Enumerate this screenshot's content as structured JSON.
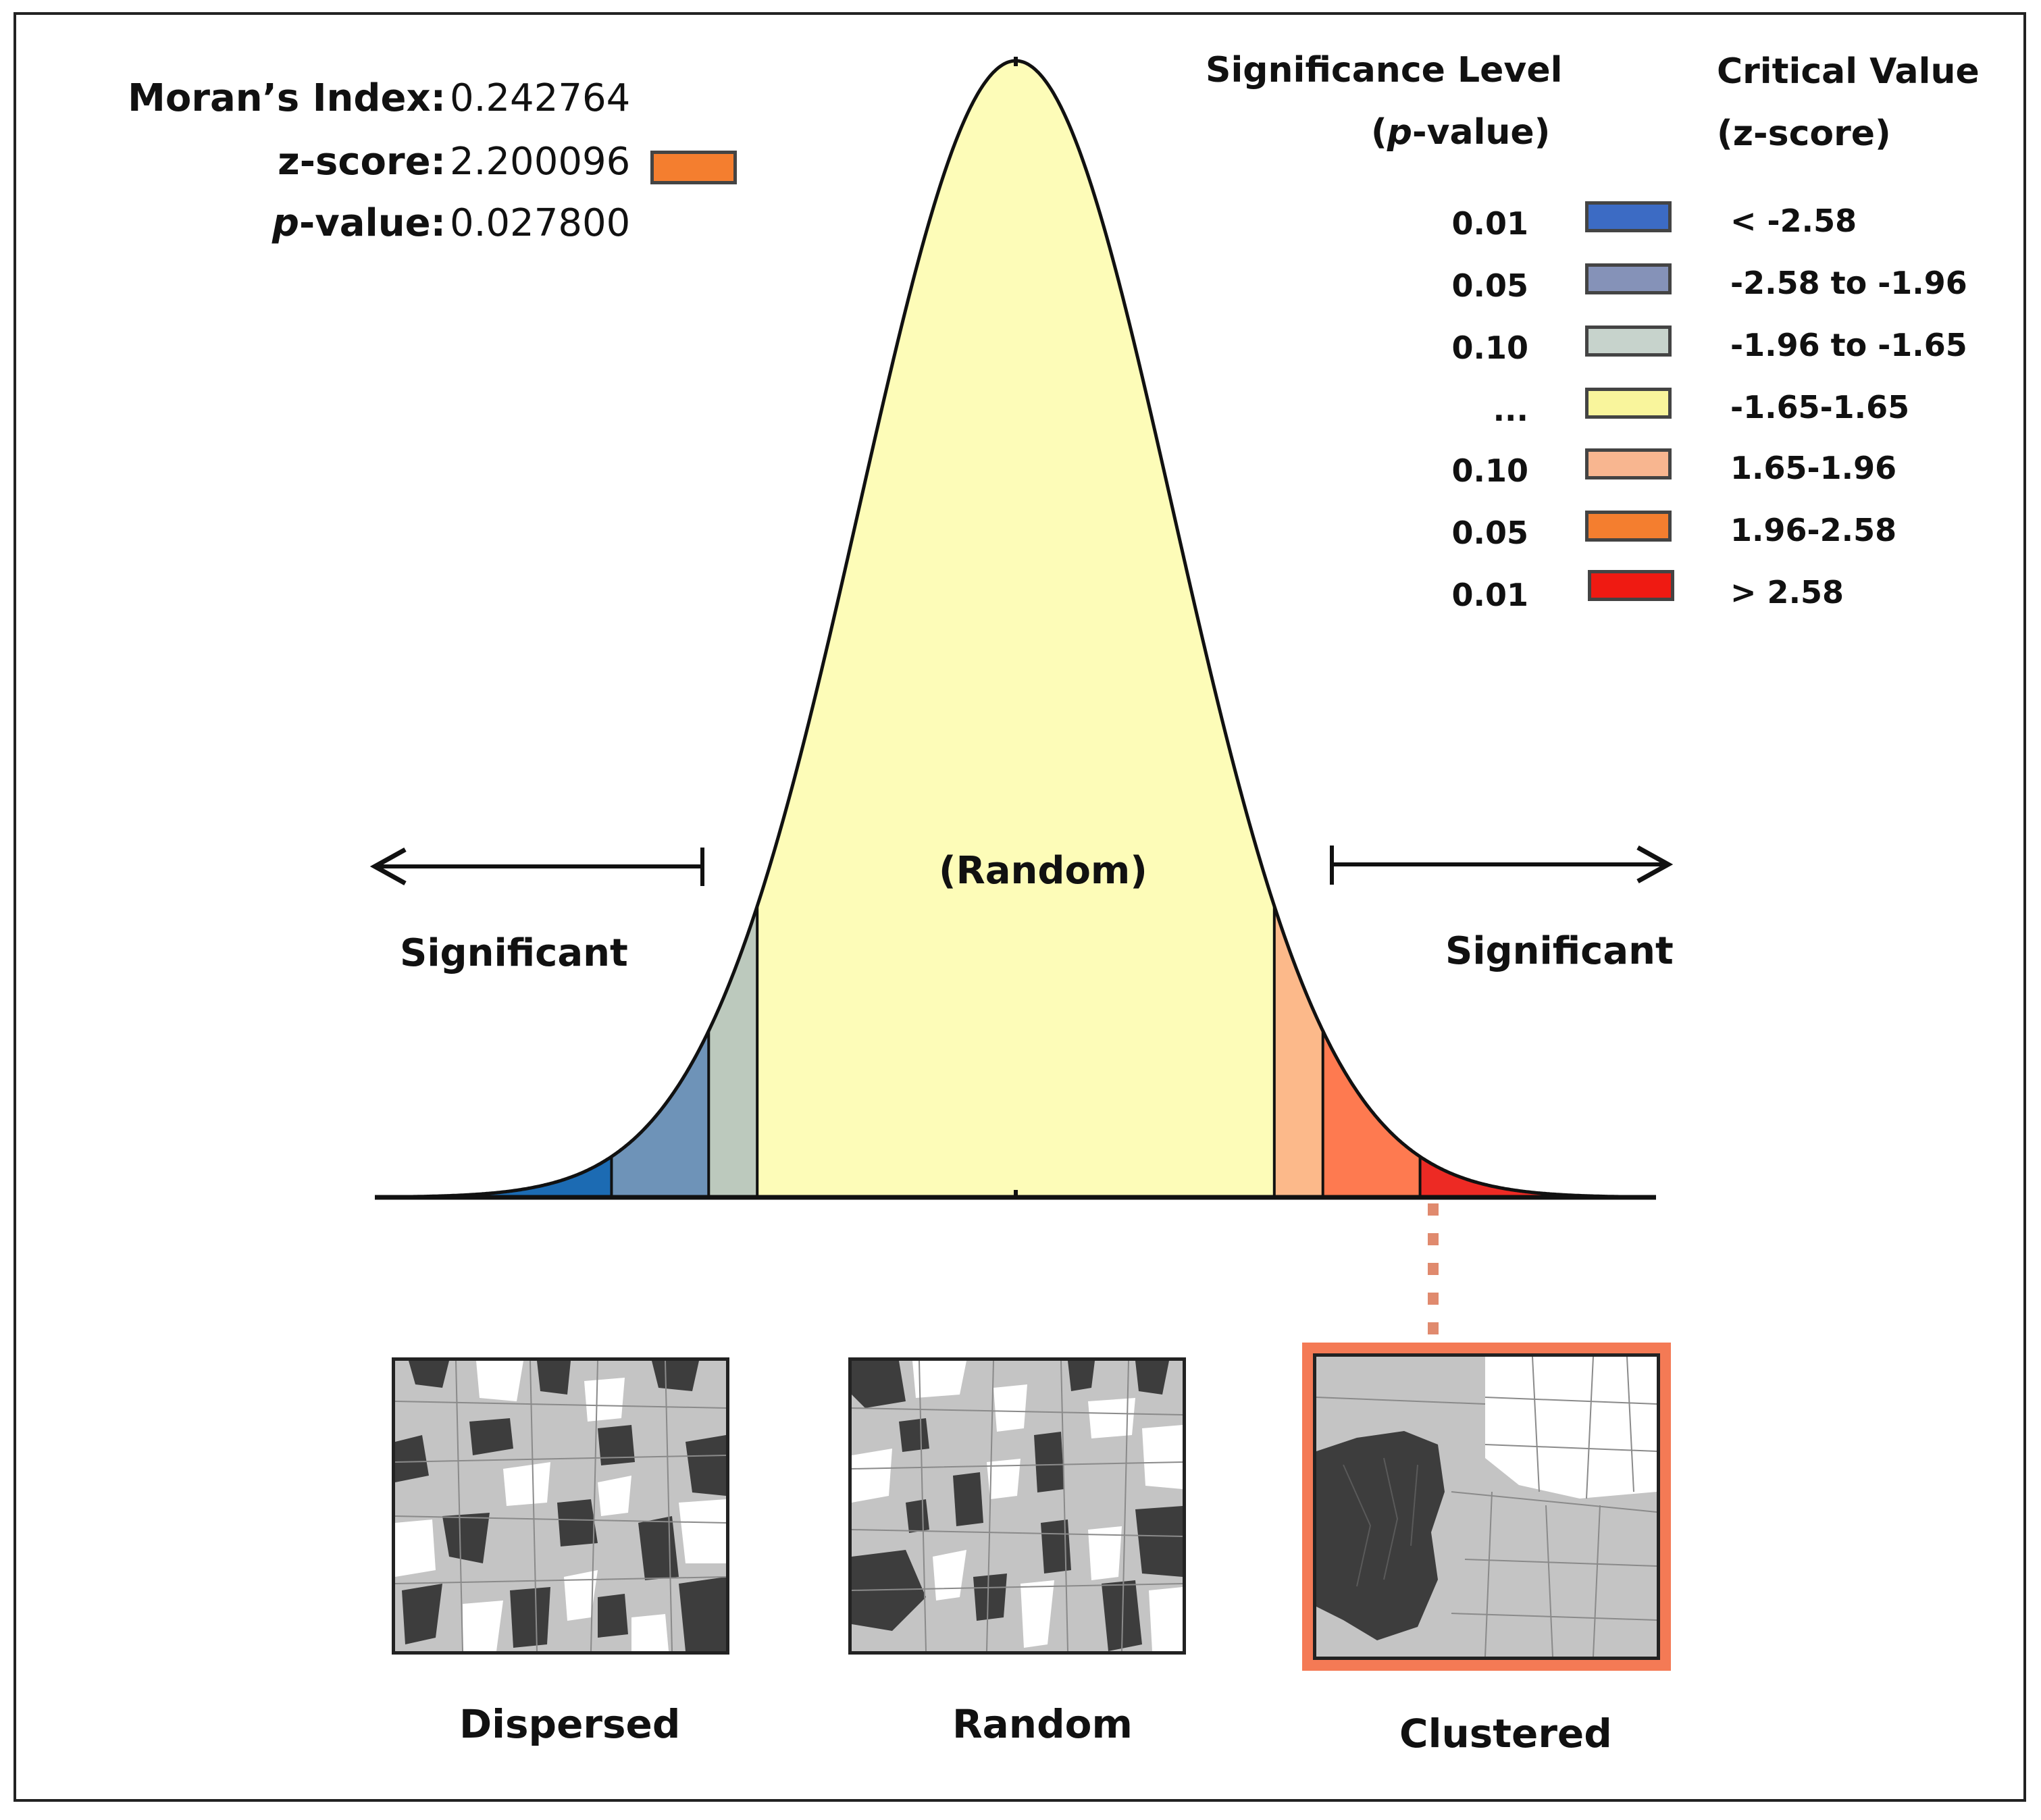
{
  "stats": {
    "moran_label": "Moran’s Index:",
    "moran_value": "0.242764",
    "z_label": "z-score:",
    "z_value": "2.200096",
    "p_label_italic": "p",
    "p_label_rest": "-value:",
    "p_value": "0.027800",
    "indicator_color": "#f47e2f"
  },
  "legend": {
    "sig_header_line1": "Significance Level",
    "sig_header_line2_italic": "p",
    "sig_header_line2_rest": "-value)",
    "sig_header_line2_open": "(",
    "crit_header_line1": "Critical Value",
    "crit_header_line2": "(z-score)",
    "rows": [
      {
        "p": "0.01",
        "z": "< -2.58",
        "color": "#3c6bc4"
      },
      {
        "p": "0.05",
        "z": "-2.58 to -1.96",
        "color": "#8592b8"
      },
      {
        "p": "0.10",
        "z": "-1.96 to -1.65",
        "color": "#c7d3cc"
      },
      {
        "p": "...",
        "z": "-1.65-1.65",
        "color": "#f9f59c"
      },
      {
        "p": "0.10",
        "z": "1.65-1.96",
        "color": "#f8b690"
      },
      {
        "p": "0.05",
        "z": "1.96-2.58",
        "color": "#f47e2f"
      },
      {
        "p": "0.01",
        "z": "> 2.58",
        "color": "#ef1a12"
      }
    ]
  },
  "curve": {
    "center_label": "(Random)",
    "left_label": "Significant",
    "right_label": "Significant",
    "z_breaks": [
      -2.58,
      -1.96,
      -1.65,
      1.65,
      1.96,
      2.58
    ],
    "region_colors": [
      "#1c6bb3",
      "#6e93b8",
      "#bcc9bd",
      "#fdfcb8",
      "#fcb98a",
      "#fe7a50",
      "#ed2a24"
    ]
  },
  "maps": {
    "dispersed_label": "Dispersed",
    "random_label": "Random",
    "clustered_label": "Clustered",
    "highlight_color": "#f47a55"
  }
}
